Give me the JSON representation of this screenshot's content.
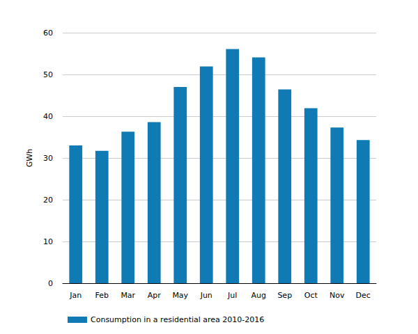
{
  "chart_data": {
    "type": "bar",
    "ylabel": "GWh",
    "categories": [
      "Jan",
      "Feb",
      "Mar",
      "Apr",
      "May",
      "Jun",
      "Jul",
      "Aug",
      "Sep",
      "Oct",
      "Nov",
      "Dec"
    ],
    "series": [
      {
        "name": "Consumption in a residential area 2010-2016",
        "color": "#0f7ab4",
        "values": [
          33.0,
          31.7,
          36.3,
          38.6,
          47.0,
          51.9,
          56.1,
          54.1,
          46.4,
          41.9,
          37.3,
          34.3
        ]
      }
    ],
    "ylim": [
      0,
      60
    ],
    "yticks": [
      0,
      10,
      20,
      30,
      40,
      50,
      60
    ],
    "grid": true,
    "legend": "bottom-left"
  }
}
